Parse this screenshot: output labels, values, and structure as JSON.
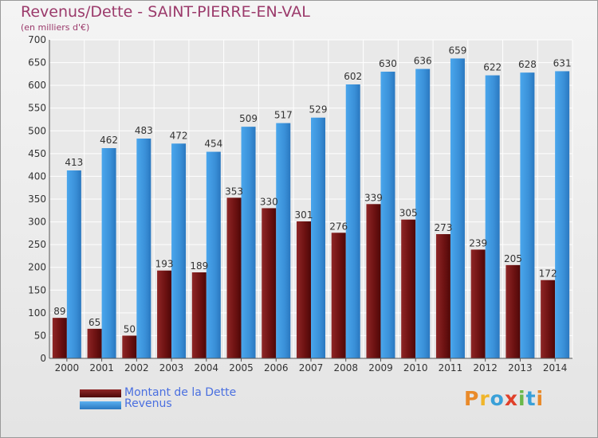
{
  "header": {
    "title": "Revenus/Dette - SAINT-PIERRE-EN-VAL",
    "subtitle": "(en milliers d'€)"
  },
  "legend": {
    "debt_label": "Montant de la Dette",
    "revenue_label": "Revenus"
  },
  "logo": {
    "text": "Proxiti"
  },
  "colors": {
    "debt": "#7a1c1c",
    "revenue": "#3a93dc",
    "title": "#9b3a6b",
    "legend_text": "#4a6fe0"
  },
  "chart_data": {
    "type": "bar",
    "title": "Revenus/Dette - SAINT-PIERRE-EN-VAL",
    "subtitle": "(en milliers d'€)",
    "categories": [
      "2000",
      "2001",
      "2002",
      "2003",
      "2004",
      "2005",
      "2006",
      "2007",
      "2008",
      "2009",
      "2010",
      "2011",
      "2012",
      "2013",
      "2014"
    ],
    "series": [
      {
        "name": "Montant de la Dette",
        "values": [
          89,
          65,
          50,
          193,
          189,
          353,
          330,
          301,
          276,
          339,
          305,
          273,
          239,
          205,
          172
        ]
      },
      {
        "name": "Revenus",
        "values": [
          413,
          462,
          483,
          472,
          454,
          509,
          517,
          529,
          602,
          630,
          636,
          659,
          622,
          628,
          631
        ]
      }
    ],
    "ylim": [
      0,
      700
    ],
    "yticks": [
      0,
      50,
      100,
      150,
      200,
      250,
      300,
      350,
      400,
      450,
      500,
      550,
      600,
      650,
      700
    ],
    "grid": true,
    "legend_position": "bottom-left",
    "data_labels": true
  }
}
